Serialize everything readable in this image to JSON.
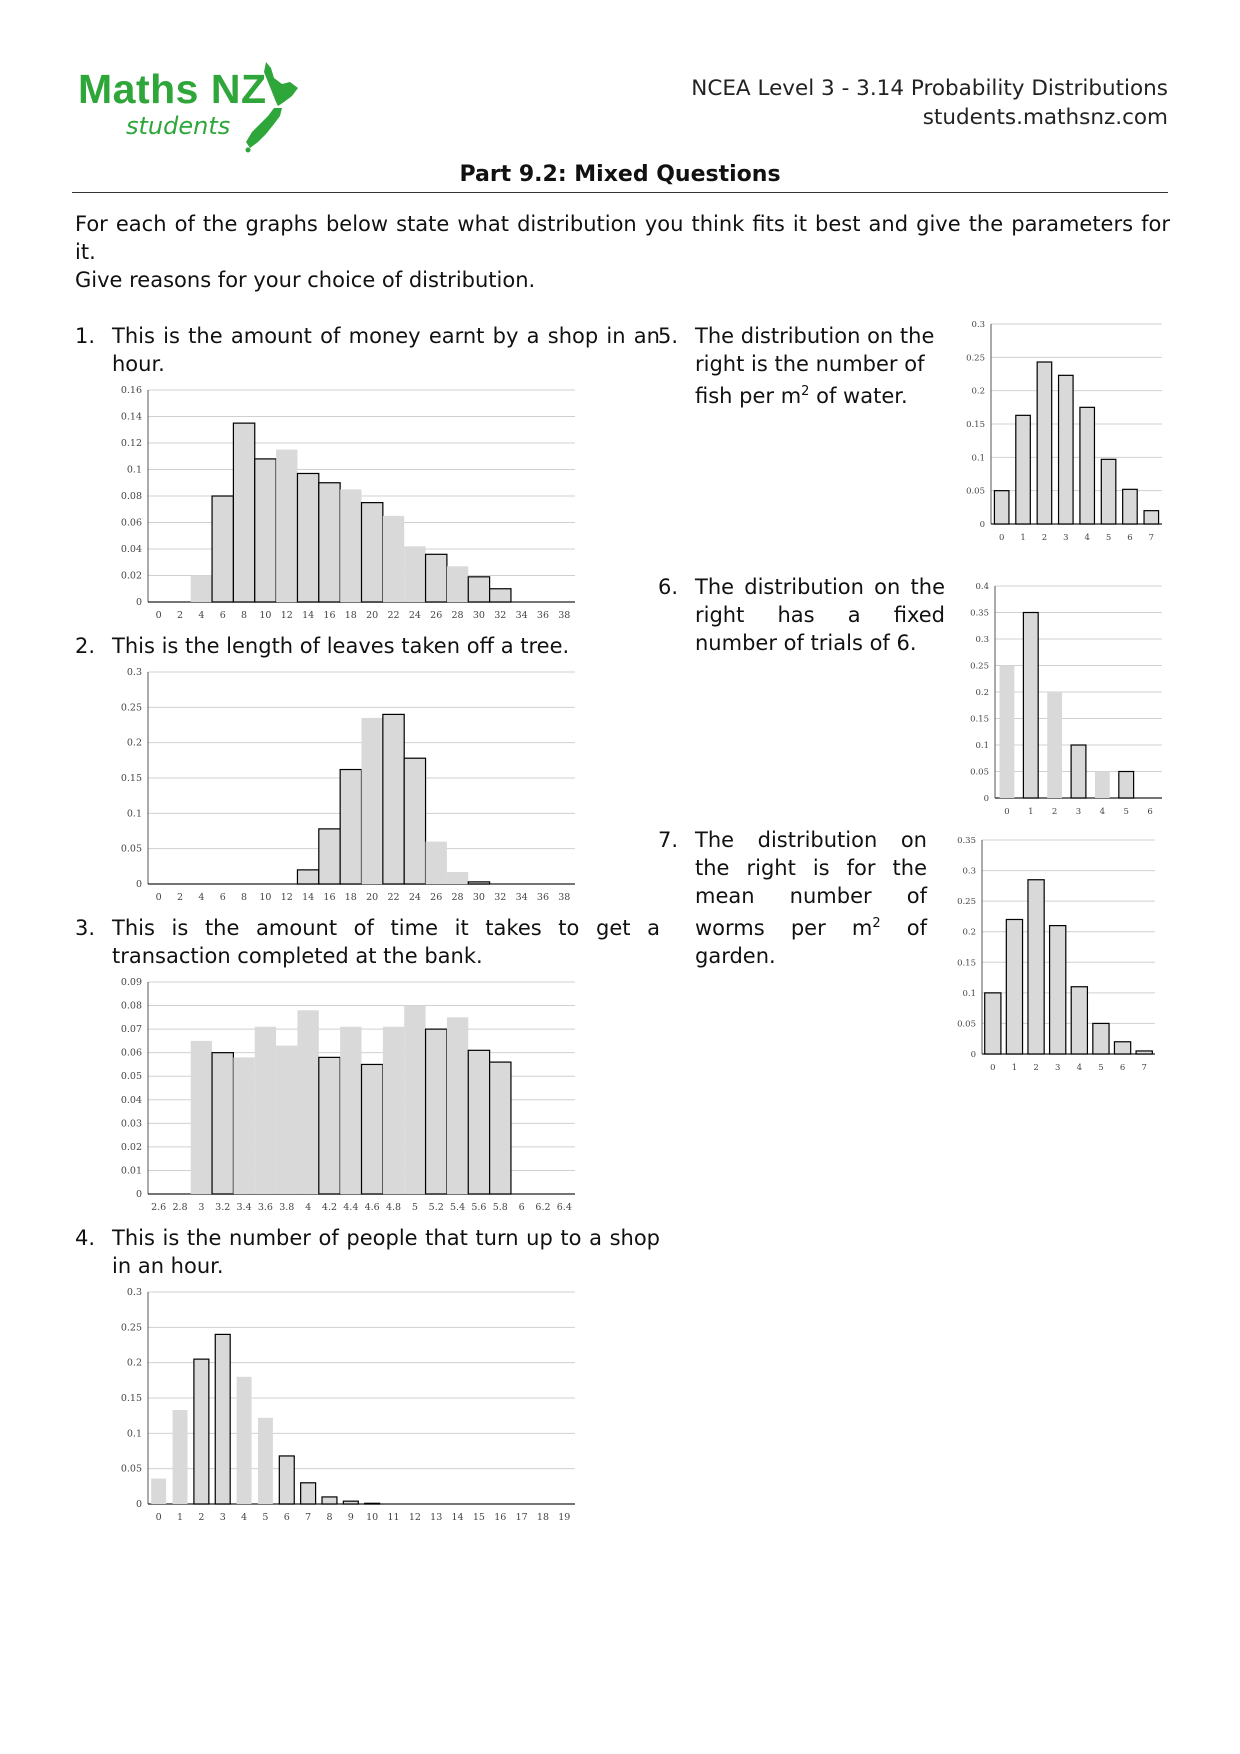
{
  "header": {
    "logo_main": "Maths NZ",
    "logo_sub": "students",
    "course": "NCEA Level 3 - 3.14 Probability Distributions",
    "website": "students.mathsnz.com"
  },
  "title": "Part 9.2: Mixed Questions",
  "intro": {
    "line1": "For each of the graphs below state what distribution you think fits it best and give the parameters for it.",
    "line2": "Give reasons for your choice of distribution."
  },
  "questions": [
    {
      "num": "1.",
      "text": "This is the amount of money earnt by a shop in an hour."
    },
    {
      "num": "2.",
      "text": "This is the length of leaves taken off a tree."
    },
    {
      "num": "3.",
      "text": "This is the amount of time it takes to get a transaction completed at the bank."
    },
    {
      "num": "4.",
      "text": "This is the number of people that turn up to a shop in an hour."
    },
    {
      "num": "5.",
      "text_before": "The distribution on the right is the number of fish per m",
      "sup": "2",
      "text_after": " of water."
    },
    {
      "num": "6.",
      "text": "The distribution on the right has a fixed number of trials of 6."
    },
    {
      "num": "7.",
      "text_before": "The distribution on the right is for the mean number of worms per m",
      "sup": "2",
      "text_after": " of garden."
    }
  ],
  "colors": {
    "logo_green": "#2ea63a",
    "bar_fill": "#d9d9d9",
    "bar_outline": "#000000",
    "grid": "#d0d0d0"
  },
  "chart_data": [
    {
      "id": "chart1",
      "type": "bar",
      "categories": [
        "0",
        "2",
        "4",
        "6",
        "8",
        "10",
        "12",
        "14",
        "16",
        "18",
        "20",
        "22",
        "24",
        "26",
        "28",
        "30",
        "32",
        "34",
        "36",
        "38"
      ],
      "values": [
        0,
        0,
        0.02,
        0.08,
        0.135,
        0.108,
        0.115,
        0.097,
        0.09,
        0.085,
        0.075,
        0.065,
        0.042,
        0.036,
        0.027,
        0.019,
        0.01,
        0,
        0,
        0
      ],
      "outlined": [
        false,
        false,
        false,
        true,
        true,
        true,
        false,
        true,
        true,
        false,
        true,
        false,
        false,
        true,
        false,
        true,
        true,
        false,
        false,
        false
      ],
      "yticks": [
        "0",
        "0.02",
        "0.04",
        "0.06",
        "0.08",
        "0.1",
        "0.12",
        "0.14",
        "0.16"
      ],
      "ylim": [
        0,
        0.16
      ]
    },
    {
      "id": "chart2",
      "type": "bar",
      "categories": [
        "0",
        "2",
        "4",
        "6",
        "8",
        "10",
        "12",
        "14",
        "16",
        "18",
        "20",
        "22",
        "24",
        "26",
        "28",
        "30",
        "32",
        "34",
        "36",
        "38"
      ],
      "values": [
        0,
        0,
        0,
        0,
        0,
        0,
        0,
        0.02,
        0.078,
        0.162,
        0.235,
        0.24,
        0.178,
        0.06,
        0.017,
        0.003,
        0,
        0,
        0,
        0
      ],
      "outlined": [
        false,
        false,
        false,
        false,
        false,
        false,
        false,
        true,
        true,
        true,
        false,
        true,
        true,
        false,
        false,
        true,
        false,
        false,
        false,
        false
      ],
      "yticks": [
        "0",
        "0.05",
        "0.1",
        "0.15",
        "0.2",
        "0.25",
        "0.3"
      ],
      "ylim": [
        0,
        0.3
      ]
    },
    {
      "id": "chart3",
      "type": "bar",
      "categories": [
        "2.6",
        "2.8",
        "3",
        "3.2",
        "3.4",
        "3.6",
        "3.8",
        "4",
        "4.2",
        "4.4",
        "4.6",
        "4.8",
        "5",
        "5.2",
        "5.4",
        "5.6",
        "5.8",
        "6",
        "6.2",
        "6.4"
      ],
      "values": [
        0,
        0,
        0.065,
        0.06,
        0.058,
        0.071,
        0.063,
        0.078,
        0.058,
        0.071,
        0.055,
        0.071,
        0.08,
        0.07,
        0.075,
        0.061,
        0.056,
        0,
        0,
        0
      ],
      "outlined": [
        false,
        false,
        false,
        true,
        false,
        false,
        false,
        false,
        true,
        false,
        true,
        false,
        false,
        true,
        false,
        true,
        true,
        false,
        false,
        false
      ],
      "yticks": [
        "0",
        "0.01",
        "0.02",
        "0.03",
        "0.04",
        "0.05",
        "0.06",
        "0.07",
        "0.08",
        "0.09"
      ],
      "ylim": [
        0,
        0.09
      ]
    },
    {
      "id": "chart4",
      "type": "bar",
      "categories": [
        "0",
        "1",
        "2",
        "3",
        "4",
        "5",
        "6",
        "7",
        "8",
        "9",
        "10",
        "11",
        "12",
        "13",
        "14",
        "15",
        "16",
        "17",
        "18",
        "19"
      ],
      "values": [
        0.036,
        0.133,
        0.205,
        0.24,
        0.18,
        0.122,
        0.068,
        0.03,
        0.01,
        0.004,
        0.001,
        0,
        0,
        0,
        0,
        0,
        0,
        0,
        0,
        0
      ],
      "outlined": [
        false,
        false,
        true,
        true,
        false,
        false,
        true,
        true,
        true,
        true,
        true,
        false,
        false,
        false,
        false,
        false,
        false,
        false,
        false,
        false
      ],
      "yticks": [
        "0",
        "0.05",
        "0.1",
        "0.15",
        "0.2",
        "0.25",
        "0.3"
      ],
      "ylim": [
        0,
        0.3
      ]
    },
    {
      "id": "chart5",
      "type": "bar",
      "categories": [
        "0",
        "1",
        "2",
        "3",
        "4",
        "5",
        "6",
        "7"
      ],
      "values": [
        0.05,
        0.163,
        0.243,
        0.223,
        0.175,
        0.097,
        0.052,
        0.02
      ],
      "outlined": [
        true,
        true,
        true,
        true,
        true,
        true,
        true,
        true
      ],
      "yticks": [
        "0",
        "0.05",
        "0.1",
        "0.15",
        "0.2",
        "0.25",
        "0.3"
      ],
      "ylim": [
        0,
        0.3
      ]
    },
    {
      "id": "chart6",
      "type": "bar",
      "categories": [
        "0",
        "1",
        "2",
        "3",
        "4",
        "5",
        "6"
      ],
      "values": [
        0.25,
        0.35,
        0.2,
        0.1,
        0.05,
        0.05,
        0
      ],
      "outlined": [
        false,
        true,
        false,
        true,
        false,
        true,
        false
      ],
      "yticks": [
        "0",
        "0.05",
        "0.1",
        "0.15",
        "0.2",
        "0.25",
        "0.3",
        "0.35",
        "0.4"
      ],
      "ylim": [
        0,
        0.4
      ]
    },
    {
      "id": "chart7",
      "type": "bar",
      "categories": [
        "0",
        "1",
        "2",
        "3",
        "4",
        "5",
        "6",
        "7"
      ],
      "values": [
        0.1,
        0.22,
        0.285,
        0.21,
        0.11,
        0.05,
        0.02,
        0.005
      ],
      "outlined": [
        true,
        true,
        true,
        true,
        true,
        true,
        true,
        true
      ],
      "yticks": [
        "0",
        "0.05",
        "0.1",
        "0.15",
        "0.2",
        "0.25",
        "0.3",
        "0.35"
      ],
      "ylim": [
        0,
        0.35
      ]
    }
  ]
}
